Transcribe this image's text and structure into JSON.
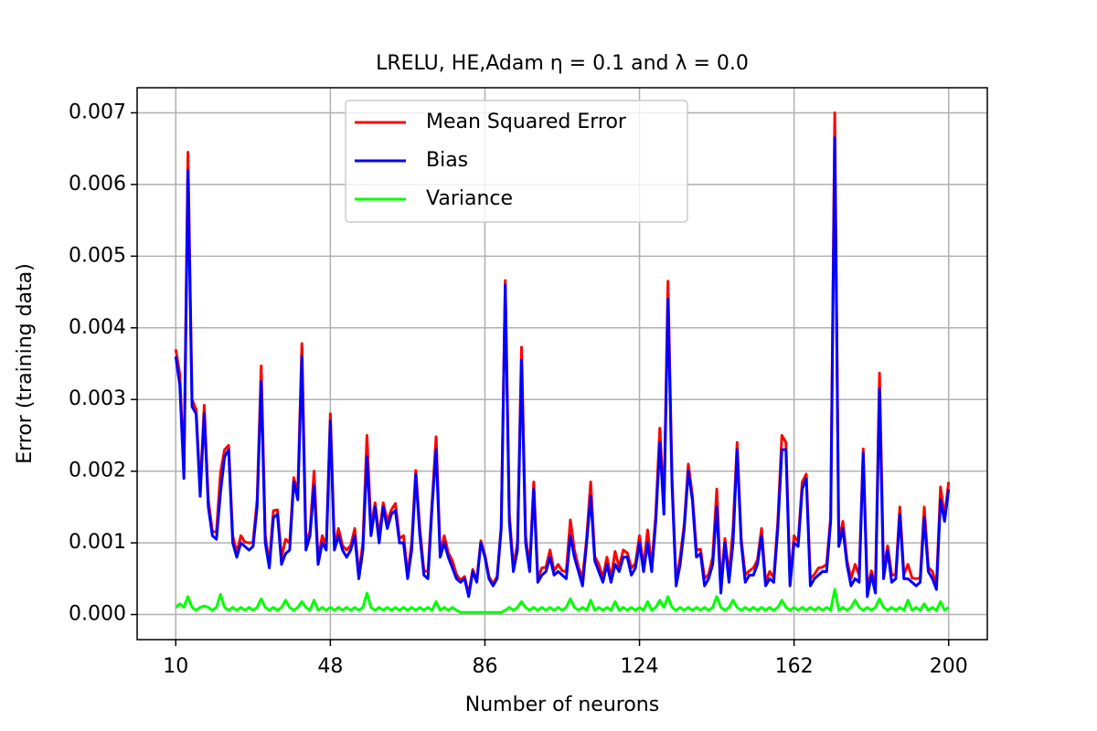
{
  "chart_data": {
    "type": "line",
    "title": "LRELU, HE,Adam η = 0.1 and λ = 0.0",
    "xlabel": "Number of neurons",
    "ylabel": "Error (training data)",
    "x": [
      10,
      11,
      12,
      13,
      14,
      15,
      16,
      17,
      18,
      19,
      20,
      21,
      22,
      23,
      24,
      25,
      26,
      27,
      28,
      29,
      30,
      31,
      32,
      33,
      34,
      35,
      36,
      37,
      38,
      39,
      40,
      41,
      42,
      43,
      44,
      45,
      46,
      47,
      48,
      49,
      50,
      51,
      52,
      53,
      54,
      55,
      56,
      57,
      58,
      59,
      60,
      61,
      62,
      63,
      64,
      65,
      66,
      67,
      68,
      69,
      70,
      71,
      72,
      73,
      74,
      75,
      76,
      77,
      78,
      79,
      80,
      81,
      82,
      83,
      84,
      85,
      86,
      87,
      88,
      89,
      90,
      91,
      92,
      93,
      94,
      95,
      96,
      97,
      98,
      99,
      100,
      101,
      102,
      103,
      104,
      105,
      106,
      107,
      108,
      109,
      110,
      111,
      112,
      113,
      114,
      115,
      116,
      117,
      118,
      119,
      120,
      121,
      122,
      123,
      124,
      125,
      126,
      127,
      128,
      129,
      130,
      131,
      132,
      133,
      134,
      135,
      136,
      137,
      138,
      139,
      140,
      141,
      142,
      143,
      144,
      145,
      146,
      147,
      148,
      149,
      150,
      151,
      152,
      153,
      154,
      155,
      156,
      157,
      158,
      159,
      160,
      161,
      162,
      163,
      164,
      165,
      166,
      167,
      168,
      169,
      170,
      171,
      172,
      173,
      174,
      175,
      176,
      177,
      178,
      179,
      180,
      181,
      182,
      183,
      184,
      185,
      186,
      187,
      188,
      189,
      190,
      191,
      192,
      193,
      194,
      195,
      196,
      197,
      198,
      199,
      200
    ],
    "series": [
      {
        "name": "Mean Squared Error",
        "color": "#ff0000",
        "values": [
          0.0037,
          0.00335,
          0.002,
          0.00645,
          0.003,
          0.00286,
          0.00175,
          0.00292,
          0.0016,
          0.00116,
          0.00115,
          0.00198,
          0.0023,
          0.00236,
          0.0011,
          0.00086,
          0.0011,
          0.00101,
          0.001,
          0.00101,
          0.0016,
          0.00347,
          0.0011,
          0.00071,
          0.00145,
          0.00146,
          0.0008,
          0.00105,
          0.001,
          0.00191,
          0.0017,
          0.00378,
          0.001,
          0.00116,
          0.002,
          0.00076,
          0.0011,
          0.00096,
          0.0028,
          0.00096,
          0.0012,
          0.00096,
          0.0009,
          0.00096,
          0.0012,
          0.00056,
          0.001,
          0.0025,
          0.0012,
          0.00156,
          0.0011,
          0.00156,
          0.0013,
          0.00146,
          0.00155,
          0.00106,
          0.0011,
          0.00056,
          0.001,
          0.00201,
          0.0012,
          0.00061,
          0.0006,
          0.00156,
          0.00248,
          0.00086,
          0.0011,
          0.00086,
          0.00075,
          0.00056,
          0.00048,
          0.00053,
          0.00028,
          0.00063,
          0.00048,
          0.00103,
          0.00083,
          0.00053,
          0.00043,
          0.00053,
          0.00123,
          0.00466,
          0.0014,
          0.00066,
          0.001,
          0.00373,
          0.0011,
          0.00066,
          0.00185,
          0.00051,
          0.00065,
          0.00066,
          0.0009,
          0.00061,
          0.0007,
          0.00061,
          0.0006,
          0.00132,
          0.0009,
          0.00066,
          0.0005,
          0.00106,
          0.00185,
          0.00081,
          0.0007,
          0.00051,
          0.0008,
          0.00051,
          0.00088,
          0.00066,
          0.0009,
          0.00086,
          0.00065,
          0.00071,
          0.0011,
          0.00066,
          0.00118,
          0.00066,
          0.0014,
          0.0026,
          0.0015,
          0.00465,
          0.0019,
          0.00046,
          0.0008,
          0.00126,
          0.0021,
          0.00166,
          0.0009,
          0.00091,
          0.0005,
          0.00056,
          0.0008,
          0.00175,
          0.0004,
          0.00106,
          0.00055,
          0.0012,
          0.0024,
          0.00106,
          0.00055,
          0.00061,
          0.00065,
          0.00076,
          0.0012,
          0.00046,
          0.0006,
          0.00051,
          0.0013,
          0.0025,
          0.0024,
          0.00046,
          0.0011,
          0.00101,
          0.00185,
          0.00196,
          0.0005,
          0.00056,
          0.00065,
          0.00066,
          0.0007,
          0.00136,
          0.007,
          0.00101,
          0.0013,
          0.00076,
          0.0005,
          0.0007,
          0.00055,
          0.00231,
          0.00035,
          0.00061,
          0.0004,
          0.00337,
          0.0006,
          0.00096,
          0.00055,
          0.00056,
          0.0015,
          0.00056,
          0.0007,
          0.00051,
          0.0005,
          0.00051,
          0.0015,
          0.00066,
          0.0006,
          0.00041,
          0.00178,
          0.00136,
          0.00185
        ]
      },
      {
        "name": "Bias",
        "color": "#0000ff",
        "values": [
          0.0036,
          0.0032,
          0.0019,
          0.0062,
          0.0029,
          0.0028,
          0.00165,
          0.0028,
          0.0015,
          0.0011,
          0.00105,
          0.0017,
          0.0022,
          0.0023,
          0.001,
          0.0008,
          0.001,
          0.00095,
          0.0009,
          0.00095,
          0.0015,
          0.00325,
          0.001,
          0.00065,
          0.00135,
          0.0014,
          0.0007,
          0.00085,
          0.0009,
          0.00185,
          0.0016,
          0.0036,
          0.0009,
          0.0011,
          0.0018,
          0.0007,
          0.001,
          0.0009,
          0.0027,
          0.0009,
          0.0011,
          0.0009,
          0.0008,
          0.0009,
          0.0011,
          0.0005,
          0.0009,
          0.0022,
          0.0011,
          0.0015,
          0.001,
          0.0015,
          0.0012,
          0.0014,
          0.00145,
          0.001,
          0.001,
          0.0005,
          0.0009,
          0.00195,
          0.0011,
          0.00055,
          0.0005,
          0.0015,
          0.0023,
          0.0008,
          0.001,
          0.0008,
          0.00065,
          0.0005,
          0.00045,
          0.0005,
          0.00025,
          0.0006,
          0.00045,
          0.001,
          0.0008,
          0.0005,
          0.0004,
          0.0005,
          0.0012,
          0.0046,
          0.0013,
          0.0006,
          0.0009,
          0.00355,
          0.001,
          0.0006,
          0.00175,
          0.00045,
          0.00055,
          0.0006,
          0.0008,
          0.00055,
          0.0006,
          0.00055,
          0.0005,
          0.0011,
          0.0008,
          0.0006,
          0.0004,
          0.001,
          0.00165,
          0.00075,
          0.0006,
          0.00045,
          0.0007,
          0.00045,
          0.0007,
          0.0006,
          0.0008,
          0.0008,
          0.00055,
          0.00065,
          0.001,
          0.0006,
          0.001,
          0.0006,
          0.0013,
          0.0024,
          0.0014,
          0.0044,
          0.0018,
          0.0004,
          0.0007,
          0.0012,
          0.002,
          0.0016,
          0.0008,
          0.00085,
          0.0004,
          0.0005,
          0.0007,
          0.0015,
          0.0003,
          0.001,
          0.00045,
          0.001,
          0.0023,
          0.001,
          0.00045,
          0.00055,
          0.00055,
          0.0007,
          0.0011,
          0.0004,
          0.0005,
          0.00045,
          0.0012,
          0.0023,
          0.0023,
          0.0004,
          0.001,
          0.00095,
          0.00175,
          0.0019,
          0.0004,
          0.0005,
          0.00055,
          0.0006,
          0.0006,
          0.0013,
          0.00665,
          0.00095,
          0.0012,
          0.0007,
          0.0004,
          0.0005,
          0.00045,
          0.00225,
          0.00025,
          0.00055,
          0.0003,
          0.00315,
          0.0005,
          0.0009,
          0.00045,
          0.0005,
          0.0014,
          0.0005,
          0.0005,
          0.00045,
          0.0004,
          0.00045,
          0.00135,
          0.0006,
          0.0005,
          0.00035,
          0.0016,
          0.0013,
          0.00175
        ]
      },
      {
        "name": "Variance",
        "color": "#00ff00",
        "values": [
          0.0001,
          0.00015,
          0.0001,
          0.00025,
          0.0001,
          6e-05,
          0.0001,
          0.00012,
          0.0001,
          6e-05,
          0.0001,
          0.00028,
          0.0001,
          6e-05,
          0.0001,
          6e-05,
          0.0001,
          6e-05,
          0.0001,
          6e-05,
          0.0001,
          0.00022,
          0.0001,
          6e-05,
          0.0001,
          6e-05,
          0.0001,
          0.0002,
          0.0001,
          6e-05,
          0.0001,
          0.00018,
          0.0001,
          6e-05,
          0.0002,
          6e-05,
          0.0001,
          6e-05,
          0.0001,
          6e-05,
          0.0001,
          6e-05,
          0.0001,
          6e-05,
          0.0001,
          6e-05,
          0.0001,
          0.0003,
          0.0001,
          6e-05,
          0.0001,
          6e-05,
          0.0001,
          6e-05,
          0.0001,
          6e-05,
          0.0001,
          6e-05,
          0.0001,
          6e-05,
          0.0001,
          6e-05,
          0.0001,
          6e-05,
          0.00018,
          6e-05,
          0.0001,
          6e-05,
          0.0001,
          6e-05,
          3e-05,
          3e-05,
          3e-05,
          3e-05,
          3e-05,
          3e-05,
          3e-05,
          3e-05,
          3e-05,
          3e-05,
          3e-05,
          6e-05,
          0.0001,
          6e-05,
          0.0001,
          0.00018,
          0.0001,
          6e-05,
          0.0001,
          6e-05,
          0.0001,
          6e-05,
          0.0001,
          6e-05,
          0.0001,
          6e-05,
          0.0001,
          0.00022,
          0.0001,
          6e-05,
          0.0001,
          6e-05,
          0.0002,
          6e-05,
          0.0001,
          6e-05,
          0.0001,
          6e-05,
          0.00018,
          6e-05,
          0.0001,
          6e-05,
          0.0001,
          6e-05,
          0.0001,
          6e-05,
          0.00018,
          6e-05,
          0.0001,
          0.0002,
          0.0001,
          0.00025,
          0.0001,
          6e-05,
          0.0001,
          6e-05,
          0.0001,
          6e-05,
          0.0001,
          6e-05,
          0.0001,
          6e-05,
          0.0001,
          0.00025,
          0.0001,
          6e-05,
          0.0001,
          0.0002,
          0.0001,
          6e-05,
          0.0001,
          6e-05,
          0.0001,
          6e-05,
          0.0001,
          6e-05,
          0.0001,
          6e-05,
          0.0001,
          0.0002,
          0.0001,
          6e-05,
          0.0001,
          6e-05,
          0.0001,
          6e-05,
          0.0001,
          6e-05,
          0.0001,
          6e-05,
          0.0001,
          6e-05,
          0.00035,
          6e-05,
          0.0001,
          6e-05,
          0.0001,
          0.0002,
          0.0001,
          6e-05,
          0.0001,
          6e-05,
          0.0001,
          0.00022,
          0.0001,
          6e-05,
          0.0001,
          6e-05,
          0.0001,
          6e-05,
          0.0002,
          6e-05,
          0.0001,
          6e-05,
          0.00015,
          6e-05,
          0.0001,
          6e-05,
          0.00018,
          6e-05,
          0.0001
        ]
      }
    ],
    "xlim": [
      0.5,
      209.5
    ],
    "ylim": [
      -0.00035,
      0.00735
    ],
    "xticks": [
      10,
      48,
      86,
      124,
      162,
      200
    ],
    "yticks": [
      {
        "value": 0,
        "label": "0.000"
      },
      {
        "value": 0.001,
        "label": "0.001"
      },
      {
        "value": 0.002,
        "label": "0.002"
      },
      {
        "value": 0.003,
        "label": "0.003"
      },
      {
        "value": 0.004,
        "label": "0.004"
      },
      {
        "value": 0.005,
        "label": "0.005"
      },
      {
        "value": 0.006,
        "label": "0.006"
      },
      {
        "value": 0.007,
        "label": "0.007"
      }
    ],
    "grid": true,
    "legend": "upper center"
  }
}
